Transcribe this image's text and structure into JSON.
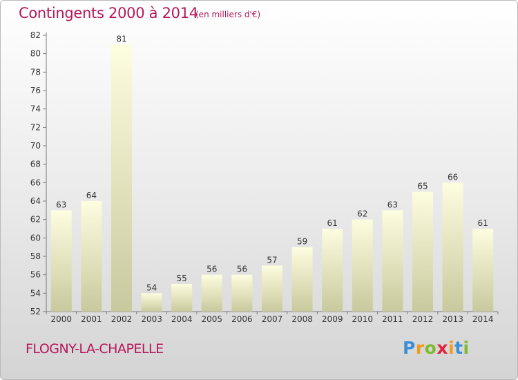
{
  "header": {
    "title": "Contingents 2000 à 2014",
    "subtitle": "(en milliers d'€)"
  },
  "footer": {
    "location": "FLOGNY-LA-CHAPELLE",
    "logo_letters": [
      {
        "char": "P",
        "color": "#3b8fd6"
      },
      {
        "char": "r",
        "color": "#f29a1d"
      },
      {
        "char": "o",
        "color": "#7dbb2e"
      },
      {
        "char": "x",
        "color": "#e2243c"
      },
      {
        "char": "i",
        "color": "#f29a1d"
      },
      {
        "char": "t",
        "color": "#3b8fd6"
      },
      {
        "char": "i",
        "color": "#7dbb2e"
      }
    ]
  },
  "chart_data": {
    "type": "bar",
    "categories": [
      "2000",
      "2001",
      "2002",
      "2003",
      "2004",
      "2005",
      "2006",
      "2007",
      "2008",
      "2009",
      "2010",
      "2011",
      "2012",
      "2013",
      "2014"
    ],
    "values": [
      63,
      64,
      81,
      54,
      55,
      56,
      56,
      57,
      59,
      61,
      62,
      63,
      65,
      66,
      61
    ],
    "ylim": [
      52,
      82
    ],
    "yticks": [
      52,
      54,
      56,
      58,
      60,
      62,
      64,
      66,
      68,
      70,
      72,
      74,
      76,
      78,
      80,
      82
    ],
    "grid": false,
    "legend": "none",
    "bar_color_top": "#fdfde0",
    "bar_color_bottom": "#c9c99e"
  }
}
